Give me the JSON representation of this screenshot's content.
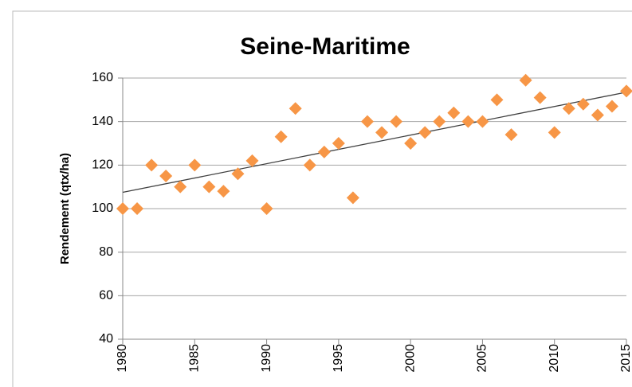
{
  "chart_data": {
    "type": "scatter",
    "title": "Seine-Maritime",
    "y_label": "Rendement (qtx/ha)",
    "x": [
      1980,
      1981,
      1982,
      1983,
      1984,
      1985,
      1986,
      1987,
      1988,
      1989,
      1990,
      1991,
      1992,
      1993,
      1994,
      1995,
      1996,
      1997,
      1998,
      1999,
      2000,
      2001,
      2002,
      2003,
      2004,
      2005,
      2006,
      2007,
      2008,
      2009,
      2010,
      2011,
      2012,
      2013,
      2014,
      2015
    ],
    "values": [
      100,
      100,
      120,
      115,
      110,
      120,
      110,
      108,
      116,
      122,
      100,
      133,
      146,
      120,
      126,
      130,
      105,
      140,
      135,
      140,
      130,
      135,
      140,
      144,
      140,
      140,
      150,
      134,
      159,
      151,
      135,
      146,
      148,
      143,
      147,
      154
    ],
    "color": "#f79646",
    "trend": {
      "x": [
        1980,
        2015
      ],
      "values": [
        107.5,
        153.5
      ],
      "color": "#404040"
    },
    "xlim": [
      1980,
      2015
    ],
    "xticks": [
      1980,
      1985,
      1990,
      1995,
      2000,
      2005,
      2010,
      2015
    ],
    "ylim": [
      40,
      160
    ],
    "yticks": [
      40,
      60,
      80,
      100,
      120,
      140,
      160
    ],
    "grid": true
  }
}
